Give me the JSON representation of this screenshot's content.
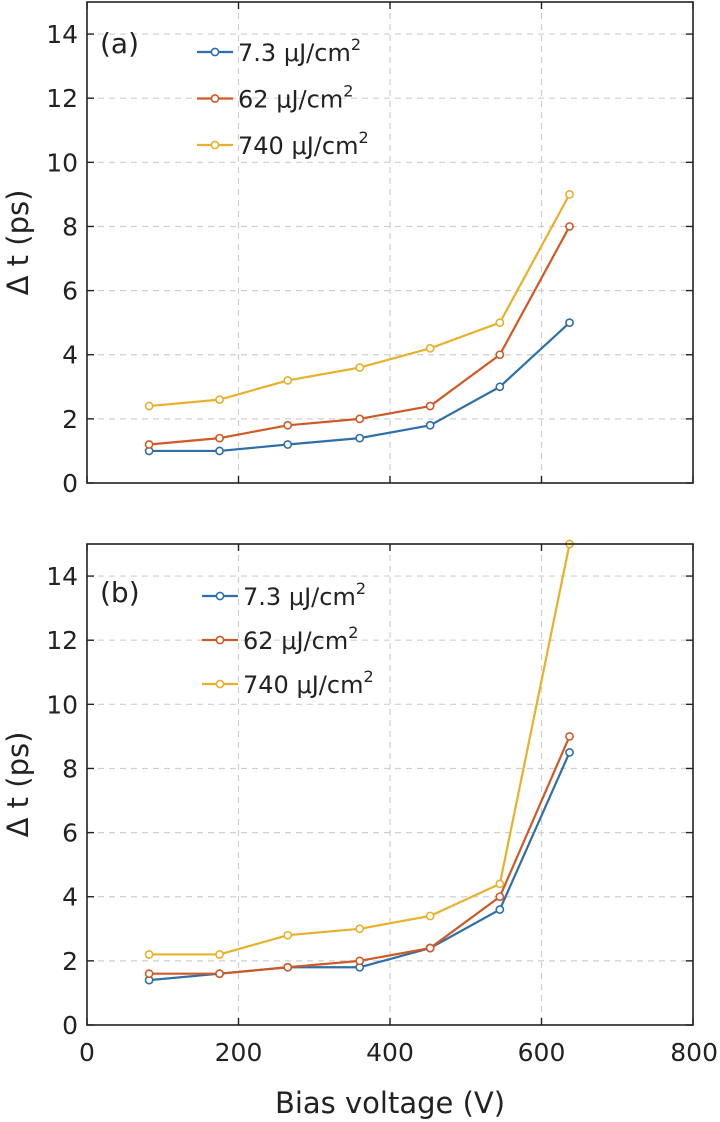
{
  "chart_data": [
    {
      "type": "line",
      "panel_label": "(a)",
      "title": "",
      "xlabel": "",
      "ylabel": "Δ t (ps)",
      "xlim": [
        0,
        800
      ],
      "ylim": [
        0,
        15
      ],
      "xticks": [
        0,
        200,
        400,
        600,
        800
      ],
      "yticks": [
        0,
        2,
        4,
        6,
        8,
        10,
        12,
        14
      ],
      "show_xtick_labels": false,
      "grid": true,
      "legend_position": "top-left",
      "x": [
        82,
        175,
        265,
        360,
        453,
        545,
        637
      ],
      "series": [
        {
          "name": "7.3",
          "unit": "μJ/cm",
          "sup": "2",
          "color": "#2f6fa8",
          "values": [
            1.0,
            1.0,
            1.2,
            1.4,
            1.8,
            3.0,
            5.0
          ]
        },
        {
          "name": "62",
          "unit": "μJ/cm",
          "sup": "2",
          "color": "#cf5a26",
          "values": [
            1.2,
            1.4,
            1.8,
            2.0,
            2.4,
            4.0,
            8.0
          ]
        },
        {
          "name": "740",
          "unit": "μJ/cm",
          "sup": "2",
          "color": "#e8b02b",
          "values": [
            2.4,
            2.6,
            3.2,
            3.6,
            4.2,
            5.0,
            9.0
          ]
        }
      ]
    },
    {
      "type": "line",
      "panel_label": "(b)",
      "title": "",
      "xlabel": "Bias voltage (V)",
      "ylabel": "Δ t (ps)",
      "xlim": [
        0,
        800
      ],
      "ylim": [
        0,
        15
      ],
      "xticks": [
        0,
        200,
        400,
        600,
        800
      ],
      "yticks": [
        0,
        2,
        4,
        6,
        8,
        10,
        12,
        14
      ],
      "show_xtick_labels": true,
      "grid": true,
      "legend_position": "top-left",
      "x": [
        82,
        175,
        265,
        360,
        453,
        545,
        637
      ],
      "series": [
        {
          "name": "7.3",
          "unit": "μJ/cm",
          "sup": "2",
          "color": "#2f6fa8",
          "values": [
            1.4,
            1.6,
            1.8,
            1.8,
            2.4,
            3.6,
            8.5
          ]
        },
        {
          "name": "62",
          "unit": "μJ/cm",
          "sup": "2",
          "color": "#cf5a26",
          "values": [
            1.6,
            1.6,
            1.8,
            2.0,
            2.4,
            4.0,
            9.0
          ]
        },
        {
          "name": "740",
          "unit": "μJ/cm",
          "sup": "2",
          "color": "#e8b02b",
          "values": [
            2.2,
            2.2,
            2.8,
            3.0,
            3.4,
            4.4,
            15.0
          ]
        }
      ]
    }
  ]
}
